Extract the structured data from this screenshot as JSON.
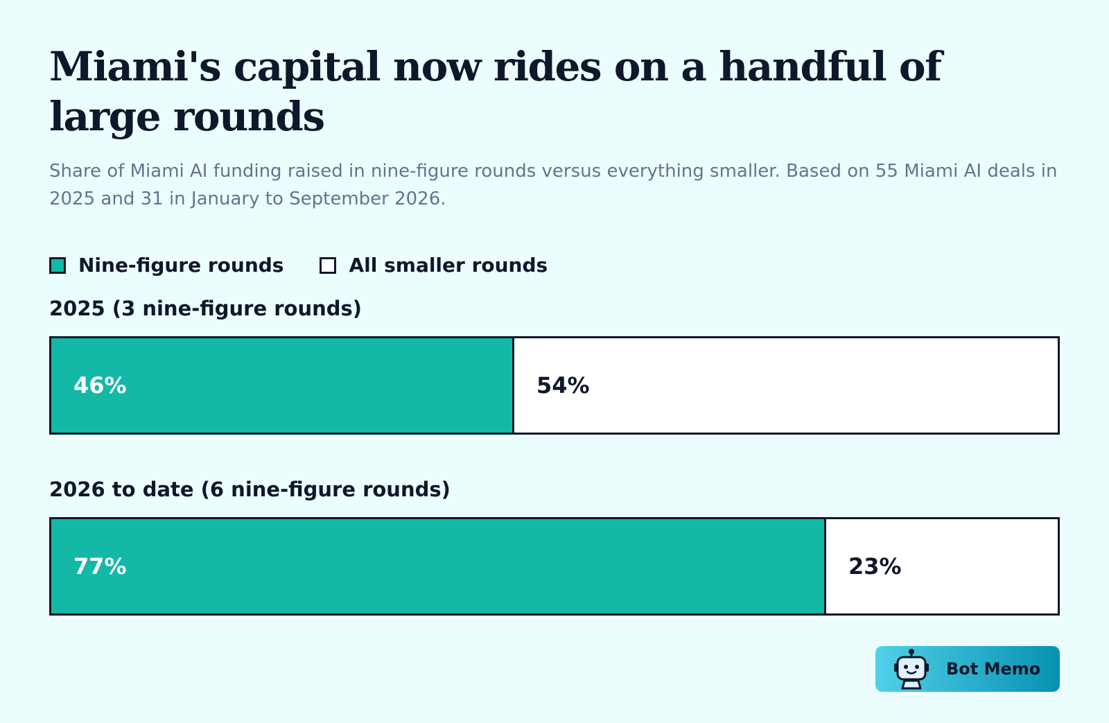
{
  "title": "Miami's capital now rides on a handful of large rounds",
  "subtitle": "Share of Miami AI funding raised in nine-figure rounds versus everything smaller. Based on 55 Miami AI deals in 2025 and 31 in January to September 2026.",
  "legend": {
    "nine_figure": "Nine-figure rounds",
    "smaller": "All smaller rounds"
  },
  "colors": {
    "background": "#ecfdfe",
    "nine_figure": "#14b8a6",
    "smaller": "#ffffff",
    "outline": "#0f172a",
    "subtitle": "#64748b"
  },
  "brand": {
    "name": "Bot Memo",
    "icon": "robot-icon"
  },
  "chart_data": {
    "type": "bar",
    "orientation": "horizontal",
    "stacked": true,
    "normalized": true,
    "categories": [
      "2025 (3 nine-figure rounds)",
      "2026 to date (6 nine-figure rounds)"
    ],
    "series": [
      {
        "name": "Nine-figure rounds",
        "values": [
          46,
          77
        ],
        "labels": [
          "46%",
          "77%"
        ]
      },
      {
        "name": "All smaller rounds",
        "values": [
          54,
          23
        ],
        "labels": [
          "54%",
          "23%"
        ]
      }
    ],
    "title": "Miami's capital now rides on a handful of large rounds",
    "xlabel": "",
    "ylabel": "",
    "xlim": [
      0,
      100
    ],
    "grid": false,
    "legend_position": "top-left"
  }
}
